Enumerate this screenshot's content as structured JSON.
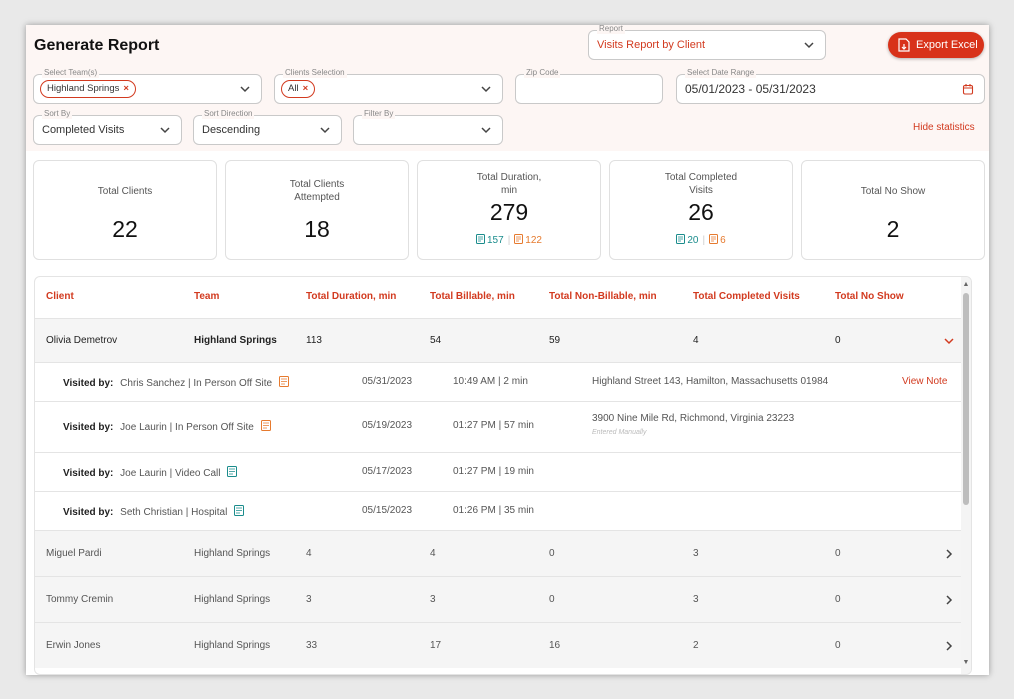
{
  "page": {
    "title": "Generate Report"
  },
  "report": {
    "label": "Report",
    "value": "Visits Report by Client"
  },
  "export": {
    "label": "Export Excel"
  },
  "filters": {
    "teams": {
      "label": "Select Team(s)",
      "chip": "Highland Springs"
    },
    "clients": {
      "label": "Clients Selection",
      "chip": "All"
    },
    "zip": {
      "label": "Zip Code",
      "value": ""
    },
    "date_range": {
      "label": "Select Date Range",
      "value": "05/01/2023 - 05/31/2023"
    },
    "sort_by": {
      "label": "Sort By",
      "value": "Completed Visits"
    },
    "sort_direction": {
      "label": "Sort Direction",
      "value": "Descending"
    },
    "filter_by": {
      "label": "Filter By",
      "value": ""
    },
    "hide_statistics": "Hide statistics"
  },
  "stats": [
    {
      "label": "Total Clients",
      "value": "22"
    },
    {
      "label": "Total Clients Attempted",
      "value": "18"
    },
    {
      "label": "Total Duration, min",
      "value": "279",
      "sub_a": "157",
      "sub_b": "122"
    },
    {
      "label": "Total Completed Visits",
      "value": "26",
      "sub_a": "20",
      "sub_b": "6"
    },
    {
      "label": "Total No Show",
      "value": "2"
    }
  ],
  "table": {
    "headers": [
      "Client",
      "Team",
      "Total Duration, min",
      "Total Billable, min",
      "Total Non-Billable, min",
      "Total Completed Visits",
      "Total No Show"
    ],
    "expanded_row": {
      "client": "Olivia Demetrov",
      "team": "Highland Springs",
      "duration": "113",
      "billable": "54",
      "non_billable": "59",
      "completed": "4",
      "no_show": "0"
    },
    "visits": [
      {
        "label": "Visited by:",
        "by": "Chris Sanchez",
        "type": "In Person Off Site",
        "date": "05/31/2023",
        "time": "10:49 AM",
        "duration": "2 min",
        "address": "Highland Street 143, Hamilton, Massachusetts 01984",
        "address_note": "",
        "action": "View Note"
      },
      {
        "label": "Visited by:",
        "by": "Joe Laurin",
        "type": "In Person Off Site",
        "date": "05/19/2023",
        "time": "01:27 PM",
        "duration": "57 min",
        "address": "3900 Nine Mile Rd, Richmond, Virginia 23223",
        "address_note": "Entered Manually",
        "action": ""
      },
      {
        "label": "Visited by:",
        "by": "Joe Laurin",
        "type": "Video Call",
        "date": "05/17/2023",
        "time": "01:27 PM",
        "duration": "19 min",
        "address": "",
        "address_note": "",
        "action": ""
      },
      {
        "label": "Visited by:",
        "by": "Seth Christian",
        "type": "Hospital",
        "date": "05/15/2023",
        "time": "01:26 PM",
        "duration": "35 min",
        "address": "",
        "address_note": "",
        "action": ""
      }
    ],
    "rows": [
      {
        "client": "Miguel Pardi",
        "team": "Highland Springs",
        "duration": "4",
        "billable": "4",
        "non_billable": "0",
        "completed": "3",
        "no_show": "0"
      },
      {
        "client": "Tommy Cremin",
        "team": "Highland Springs",
        "duration": "3",
        "billable": "3",
        "non_billable": "0",
        "completed": "3",
        "no_show": "0"
      },
      {
        "client": "Erwin Jones",
        "team": "Highland Springs",
        "duration": "33",
        "billable": "17",
        "non_billable": "16",
        "completed": "2",
        "no_show": "0"
      }
    ]
  },
  "colors": {
    "accent": "#d23a1f",
    "teal": "#1a8c8c",
    "orange": "#e67a2e"
  }
}
